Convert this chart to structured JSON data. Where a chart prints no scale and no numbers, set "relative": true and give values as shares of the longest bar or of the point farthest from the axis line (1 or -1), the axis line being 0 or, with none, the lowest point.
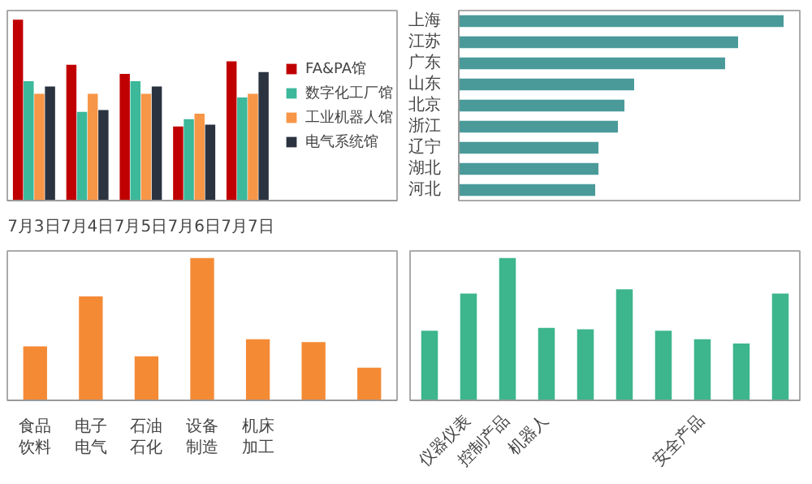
{
  "chart_data": [
    {
      "type": "bar",
      "relative": true,
      "categories": [
        "7月3日",
        "7月4日",
        "7月5日",
        "7月6日",
        "7月7日"
      ],
      "legend": "right",
      "grid": false,
      "series": [
        {
          "name": "FA&PA馆",
          "color": "#c00000",
          "values": [
            1,
            0.75,
            0.7,
            0.41,
            0.77
          ]
        },
        {
          "name": "数字化工厂馆",
          "color": "#3cb89a",
          "values": [
            0.66,
            0.49,
            0.66,
            0.45,
            0.57
          ]
        },
        {
          "name": "工业机器人馆",
          "color": "#f79646",
          "values": [
            0.59,
            0.59,
            0.59,
            0.48,
            0.59
          ]
        },
        {
          "name": "电气系统馆",
          "color": "#2b3340",
          "values": [
            0.63,
            0.5,
            0.63,
            0.42,
            0.71
          ]
        }
      ]
    },
    {
      "type": "bar",
      "relative": true,
      "orientation": "horizontal",
      "grid": false,
      "categories": [
        "上海",
        "江苏",
        "广东",
        "山东",
        "北京",
        "浙江",
        "辽宁",
        "湖北",
        "河北"
      ],
      "series": [
        {
          "color": "#4a9a9a",
          "values": [
            1,
            0.86,
            0.82,
            0.54,
            0.51,
            0.49,
            0.43,
            0.43,
            0.42
          ]
        }
      ]
    },
    {
      "type": "bar",
      "relative": true,
      "grid": false,
      "categories": [
        "食品饮料",
        "电子电气",
        "石油石化",
        "设备制造",
        "机床加工",
        null,
        null
      ],
      "series": [
        {
          "color": "#f58a35",
          "values": [
            0.38,
            0.73,
            0.31,
            1,
            0.43,
            0.41,
            0.23
          ]
        }
      ]
    },
    {
      "type": "bar",
      "relative": true,
      "grid": false,
      "categories": [
        null,
        "仪器仪表",
        "控制产品",
        "机器人",
        null,
        null,
        null,
        "安全产品",
        null,
        null
      ],
      "series": [
        {
          "color": "#3db58d",
          "values": [
            0.49,
            0.75,
            1,
            0.51,
            0.5,
            0.78,
            0.49,
            0.43,
            0.4,
            0.75
          ]
        }
      ]
    }
  ]
}
